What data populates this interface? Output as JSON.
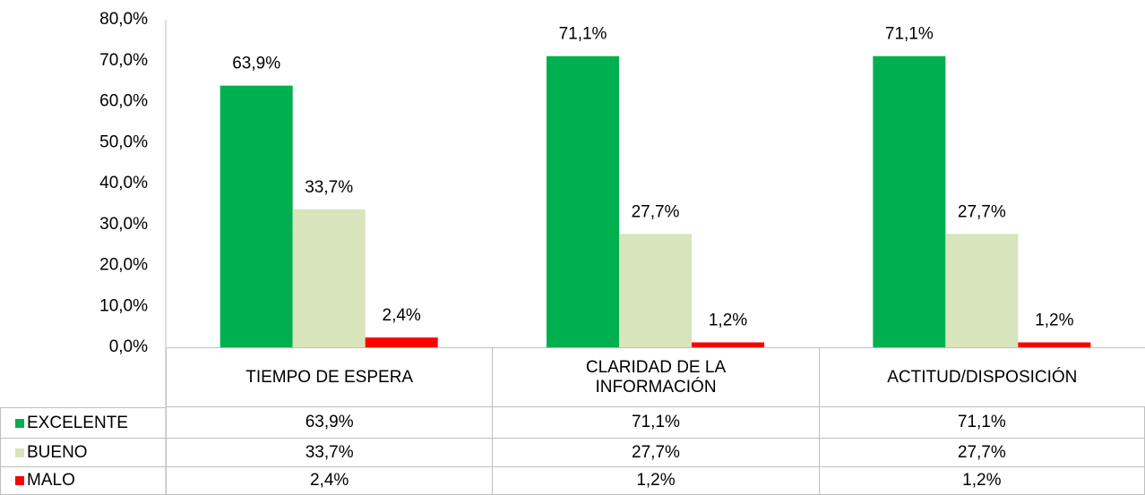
{
  "chart_data": {
    "type": "bar",
    "categories": [
      "TIEMPO DE ESPERA",
      "CLARIDAD DE LA INFORMACIÓN",
      "ACTITUD/DISPOSICIÓN"
    ],
    "series": [
      {
        "name": "EXCELENTE",
        "color": "#00b050",
        "values": [
          63.9,
          71.1,
          71.1
        ],
        "value_labels": [
          "63,9%",
          "71,1%",
          "71,1%"
        ]
      },
      {
        "name": "BUENO",
        "color": "#d8e4bc",
        "values": [
          33.7,
          27.7,
          27.7
        ],
        "value_labels": [
          "33,7%",
          "27,7%",
          "27,7%"
        ]
      },
      {
        "name": "MALO",
        "color": "#ff0000",
        "values": [
          2.4,
          1.2,
          1.2
        ],
        "value_labels": [
          "2,4%",
          "1,2%",
          "1,2%"
        ]
      }
    ],
    "ylim": [
      0,
      80
    ],
    "yticks": [
      {
        "value": 0,
        "label": "0,0%"
      },
      {
        "value": 10,
        "label": "10,0%"
      },
      {
        "value": 20,
        "label": "20,0%"
      },
      {
        "value": 30,
        "label": "30,0%"
      },
      {
        "value": 40,
        "label": "40,0%"
      },
      {
        "value": 50,
        "label": "50,0%"
      },
      {
        "value": 60,
        "label": "60,0%"
      },
      {
        "value": 70,
        "label": "70,0%"
      },
      {
        "value": 80,
        "label": "80,0%"
      }
    ],
    "grid": false
  }
}
